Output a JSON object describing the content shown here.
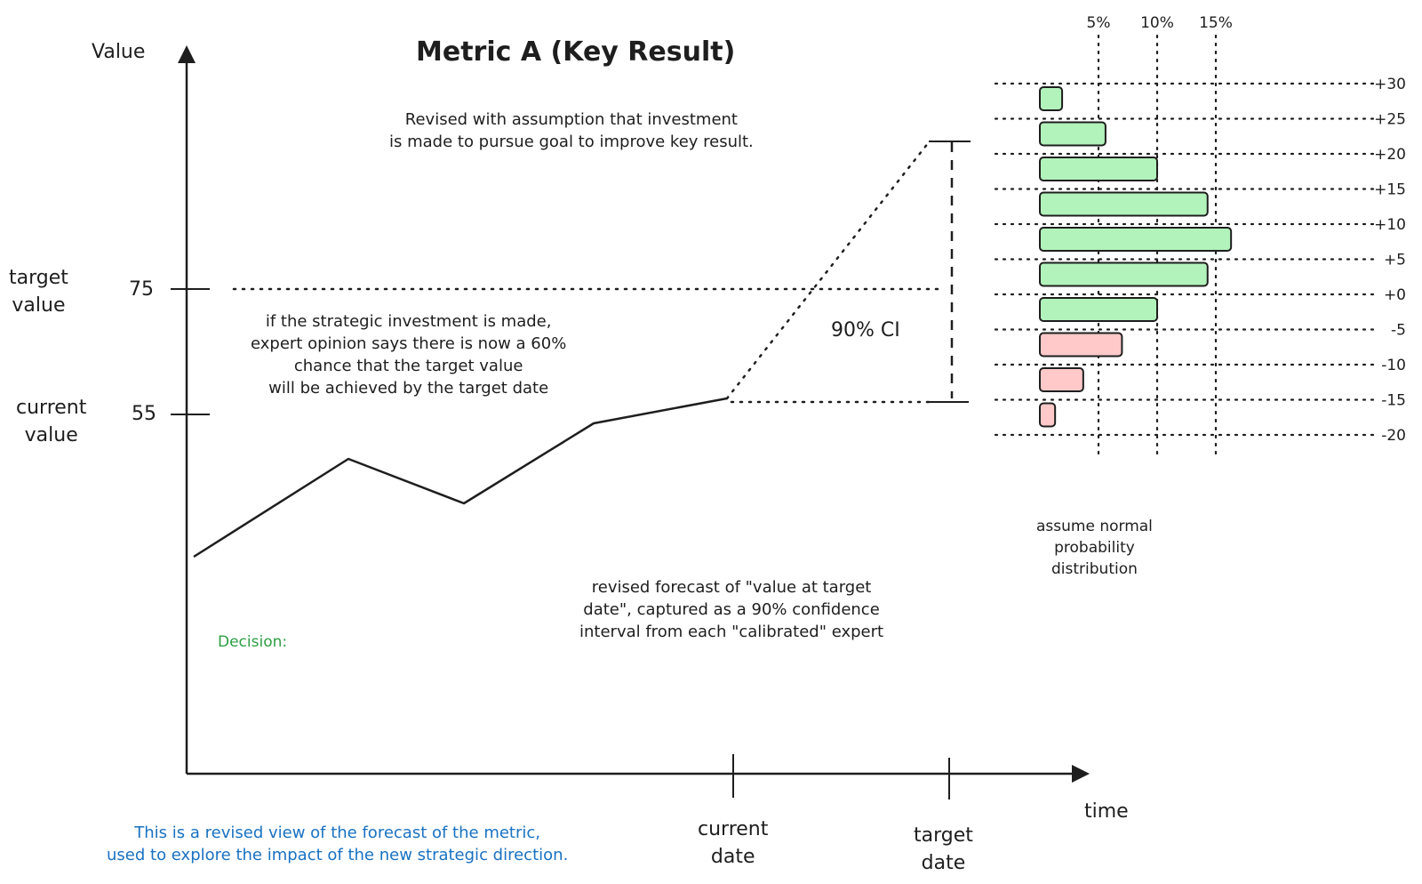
{
  "title": "Metric A (Key Result)",
  "y_axis_label": "Value",
  "x_axis_label": "time",
  "target_label": "target\nvalue",
  "target_value": "75",
  "current_label": "current\nvalue",
  "current_value": "55",
  "current_date": "current\ndate",
  "target_date": "target\ndate",
  "note_revised": "Revised with assumption that investment\nis made to pursue goal to improve key result.",
  "note_expert": "if the strategic investment is made,\nexpert opinion says there is now a 60%\nchance that the target value\nwill be achieved by the target date",
  "ci_label": "90% CI",
  "note_forecast": "revised forecast of \"value at target\ndate\", captured as a 90% confidence\ninterval from each \"calibrated\" expert",
  "decision_label": "Decision:",
  "footer_note": "This is a revised view of the forecast of the metric,\nused to explore the impact of the new strategic direction.",
  "distribution_note": "assume normal\nprobability\ndistribution",
  "colors": {
    "stroke": "#1e1e1e",
    "positive_fill": "#b2f2bb",
    "negative_fill": "#ffc9c9",
    "decision": "#2f9e44",
    "footer": "#1971c2"
  },
  "chart_data": {
    "type": "bar",
    "orientation": "horizontal",
    "title": "",
    "percent_ticks": [
      "5%",
      "10%",
      "15%"
    ],
    "percent_values": [
      5,
      10,
      15
    ],
    "rows": [
      {
        "label": "+30",
        "delta": 30,
        "value": 1.9
      },
      {
        "label": "+25",
        "delta": 25,
        "value": 5.6
      },
      {
        "label": "+20",
        "delta": 20,
        "value": 10.0
      },
      {
        "label": "+15",
        "delta": 15,
        "value": 14.3
      },
      {
        "label": "+10",
        "delta": 10,
        "value": 16.3
      },
      {
        "label": "+5",
        "delta": 5,
        "value": 14.3
      },
      {
        "label": "+0",
        "delta": 0,
        "value": 10.0
      },
      {
        "label": "-5",
        "delta": -5,
        "value": 7.0
      },
      {
        "label": "-10",
        "delta": -10,
        "value": 3.7
      },
      {
        "label": "-15",
        "delta": -15,
        "value": 1.3
      },
      {
        "label": "-20",
        "delta": -20,
        "value": null
      }
    ],
    "xlim": [
      0,
      17
    ],
    "grid": true
  }
}
